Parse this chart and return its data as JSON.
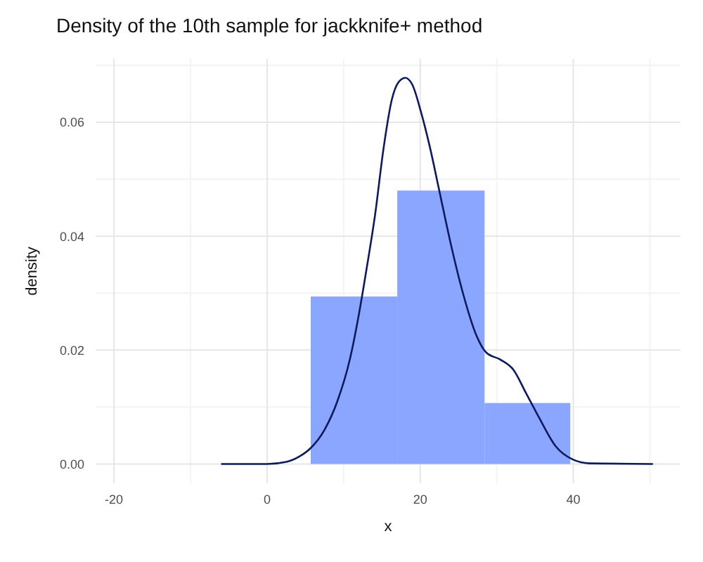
{
  "chart_data": {
    "type": "histogram",
    "title": "Density of the 10th sample for jackknife+ method",
    "xlabel": "x",
    "ylabel": "density",
    "bins": [
      5.7,
      17.0,
      28.4,
      39.6
    ],
    "values": [
      0.0294,
      0.048,
      0.0107
    ],
    "color": "#8aa6ff",
    "series": [
      {
        "type": "line",
        "color": "#0d1a5c",
        "x": [
          -6,
          0,
          2.6,
          4.2,
          5.7,
          7.5,
          9.2,
          10.8,
          11.9,
          13.0,
          14.1,
          15.2,
          16.3,
          17.1,
          18.05,
          19.0,
          20.1,
          21.2,
          22.6,
          24.0,
          25.6,
          27.3,
          28.6,
          30.5,
          32.2,
          33.8,
          35.5,
          37.7,
          39.9,
          42.1,
          50.4
        ],
        "values": [
          0,
          0,
          0.0004,
          0.0013,
          0.0028,
          0.006,
          0.0111,
          0.0183,
          0.0256,
          0.0343,
          0.0437,
          0.0553,
          0.064,
          0.0669,
          0.0678,
          0.0665,
          0.0618,
          0.056,
          0.0473,
          0.0386,
          0.0299,
          0.0227,
          0.0196,
          0.0183,
          0.0165,
          0.0125,
          0.0082,
          0.0031,
          0.0008,
          0.0001,
          0
        ]
      }
    ],
    "xlim": [
      -22.4,
      54
    ],
    "xticks": [
      -20,
      0,
      20,
      40
    ],
    "ylim": [
      -0.0034,
      0.0711
    ],
    "yticks": [
      {
        "value": 0,
        "label": "0.00"
      },
      {
        "value": 0.02,
        "label": "0.02"
      },
      {
        "value": 0.04,
        "label": "0.04"
      },
      {
        "value": 0.06,
        "label": "0.06"
      }
    ],
    "grid": true,
    "marker": "none",
    "line_style": "solid"
  }
}
